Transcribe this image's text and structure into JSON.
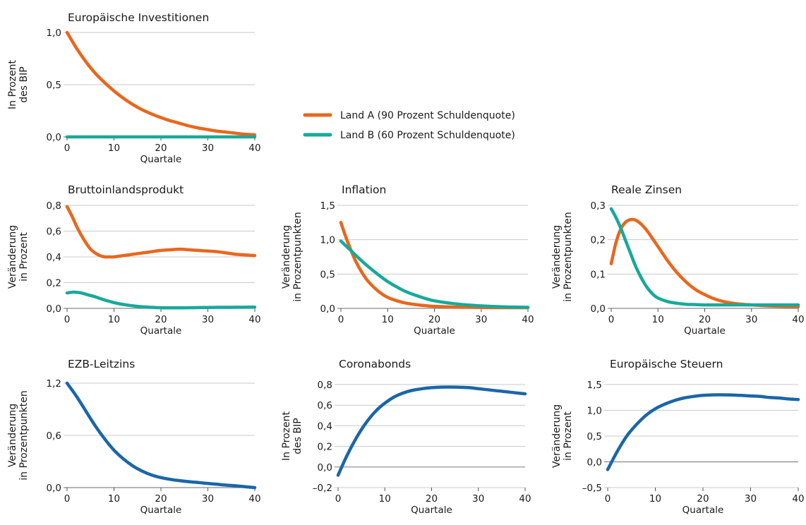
{
  "colors": {
    "land_a": "#E8671D",
    "land_b": "#18A99A",
    "euro": "#1A66A8",
    "grid": "#c8c8c8",
    "axis": "#555555"
  },
  "legend": {
    "land_a": "Land A (90 Prozent Schuldenquote)",
    "land_b": "Land B (60 Prozent Schuldenquote)"
  },
  "chart_data": [
    {
      "type": "line",
      "title": "Europäische Investitionen",
      "xlabel": "Quartale",
      "ylabel": [
        "In Prozent",
        "des BIP"
      ],
      "xlim": [
        0,
        40
      ],
      "ylim": [
        0,
        1.0
      ],
      "xticks": [
        0,
        10,
        20,
        30,
        40
      ],
      "xtick_labels": [
        "0",
        "10",
        "20",
        "30",
        "40"
      ],
      "yticks": [
        0,
        0.5,
        1.0
      ],
      "ytick_labels": [
        "0,0",
        "0,5",
        "1,0"
      ],
      "series": [
        {
          "name": "Land A (90 Prozent Schuldenquote)",
          "color": "#E8671D",
          "x": [
            0,
            2,
            4,
            6,
            8,
            10,
            12,
            14,
            16,
            18,
            20,
            22,
            24,
            26,
            28,
            30,
            32,
            34,
            36,
            38,
            40
          ],
          "y": [
            1.0,
            0.85,
            0.72,
            0.61,
            0.52,
            0.44,
            0.37,
            0.31,
            0.26,
            0.22,
            0.185,
            0.155,
            0.13,
            0.105,
            0.085,
            0.07,
            0.055,
            0.045,
            0.035,
            0.025,
            0.02
          ]
        },
        {
          "name": "Land B (60 Prozent Schuldenquote)",
          "color": "#18A99A",
          "x": [
            0,
            40
          ],
          "y": [
            0,
            0
          ]
        }
      ]
    },
    {
      "type": "line",
      "title": "Bruttoinlandsprodukt",
      "xlabel": "Quartale",
      "ylabel": [
        "Veränderung",
        "in Prozent"
      ],
      "xlim": [
        0,
        40
      ],
      "ylim": [
        0,
        0.8
      ],
      "xticks": [
        0,
        10,
        20,
        30,
        40
      ],
      "xtick_labels": [
        "0",
        "10",
        "20",
        "30",
        "40"
      ],
      "yticks": [
        0,
        0.2,
        0.4,
        0.6,
        0.8
      ],
      "ytick_labels": [
        "0,0",
        "0,2",
        "0,4",
        "0,6",
        "0,8"
      ],
      "series": [
        {
          "name": "Land A (90 Prozent Schuldenquote)",
          "color": "#E8671D",
          "x": [
            0,
            1,
            2,
            3,
            4,
            5,
            6,
            7,
            8,
            9,
            10,
            12,
            14,
            16,
            18,
            20,
            22,
            24,
            26,
            28,
            30,
            32,
            34,
            36,
            38,
            40
          ],
          "y": [
            0.79,
            0.72,
            0.64,
            0.57,
            0.51,
            0.46,
            0.43,
            0.41,
            0.4,
            0.4,
            0.4,
            0.41,
            0.42,
            0.43,
            0.44,
            0.45,
            0.455,
            0.46,
            0.455,
            0.45,
            0.445,
            0.44,
            0.43,
            0.42,
            0.415,
            0.41
          ]
        },
        {
          "name": "Land B (60 Prozent Schuldenquote)",
          "color": "#18A99A",
          "x": [
            0,
            1,
            2,
            3,
            4,
            5,
            6,
            8,
            10,
            12,
            14,
            16,
            18,
            20,
            22,
            24,
            26,
            28,
            30,
            32,
            34,
            36,
            38,
            40
          ],
          "y": [
            0.12,
            0.125,
            0.125,
            0.12,
            0.11,
            0.1,
            0.09,
            0.065,
            0.045,
            0.03,
            0.02,
            0.012,
            0.008,
            0.005,
            0.004,
            0.004,
            0.005,
            0.006,
            0.007,
            0.008,
            0.008,
            0.009,
            0.009,
            0.01
          ]
        }
      ]
    },
    {
      "type": "line",
      "title": "Inflation",
      "xlabel": "Quartale",
      "ylabel": [
        "Veränderung",
        "in Prozentpunkten"
      ],
      "xlim": [
        0,
        40
      ],
      "ylim": [
        0,
        1.5
      ],
      "xticks": [
        0,
        10,
        20,
        30,
        40
      ],
      "xtick_labels": [
        "0",
        "10",
        "20",
        "30",
        "40"
      ],
      "yticks": [
        0,
        0.5,
        1.0,
        1.5
      ],
      "ytick_labels": [
        "0,0",
        "0,5",
        "1,0",
        "1,5"
      ],
      "series": [
        {
          "name": "Land A (90 Prozent Schuldenquote)",
          "color": "#E8671D",
          "x": [
            0,
            1,
            2,
            3,
            4,
            5,
            6,
            8,
            10,
            12,
            14,
            16,
            18,
            20,
            24,
            28,
            32,
            36,
            40
          ],
          "y": [
            1.25,
            1.05,
            0.87,
            0.71,
            0.58,
            0.47,
            0.38,
            0.25,
            0.16,
            0.11,
            0.075,
            0.055,
            0.04,
            0.03,
            0.02,
            0.015,
            0.01,
            0.01,
            0.01
          ]
        },
        {
          "name": "Land B (60 Prozent Schuldenquote)",
          "color": "#18A99A",
          "x": [
            0,
            2,
            4,
            6,
            8,
            10,
            12,
            14,
            16,
            18,
            20,
            24,
            28,
            32,
            36,
            40
          ],
          "y": [
            0.98,
            0.85,
            0.72,
            0.6,
            0.49,
            0.39,
            0.31,
            0.24,
            0.19,
            0.145,
            0.11,
            0.07,
            0.045,
            0.03,
            0.02,
            0.015
          ]
        }
      ]
    },
    {
      "type": "line",
      "title": "Reale Zinsen",
      "xlabel": "Quartale",
      "ylabel": [
        "Veränderung",
        "in Prozentpunkten"
      ],
      "xlim": [
        0,
        40
      ],
      "ylim": [
        0,
        0.3
      ],
      "xticks": [
        0,
        10,
        20,
        30,
        40
      ],
      "xtick_labels": [
        "0",
        "10",
        "20",
        "30",
        "40"
      ],
      "yticks": [
        0,
        0.1,
        0.2,
        0.3
      ],
      "ytick_labels": [
        "0,0",
        "0,1",
        "0,2",
        "0,3"
      ],
      "series": [
        {
          "name": "Land A (90 Prozent Schuldenquote)",
          "color": "#E8671D",
          "x": [
            0,
            1,
            2,
            3,
            4,
            5,
            6,
            7,
            8,
            10,
            12,
            14,
            16,
            18,
            20,
            22,
            24,
            26,
            28,
            30,
            34,
            40
          ],
          "y": [
            0.13,
            0.19,
            0.23,
            0.25,
            0.258,
            0.258,
            0.25,
            0.237,
            0.22,
            0.18,
            0.14,
            0.105,
            0.077,
            0.055,
            0.04,
            0.028,
            0.02,
            0.015,
            0.012,
            0.01,
            0.007,
            0.005
          ]
        },
        {
          "name": "Land B (60 Prozent Schuldenquote)",
          "color": "#18A99A",
          "x": [
            0,
            1,
            2,
            3,
            4,
            5,
            6,
            7,
            8,
            9,
            10,
            12,
            14,
            16,
            18,
            20,
            25,
            30,
            35,
            40
          ],
          "y": [
            0.29,
            0.265,
            0.235,
            0.2,
            0.165,
            0.13,
            0.1,
            0.075,
            0.055,
            0.04,
            0.03,
            0.02,
            0.015,
            0.012,
            0.011,
            0.01,
            0.01,
            0.01,
            0.01,
            0.01
          ]
        }
      ]
    },
    {
      "type": "line",
      "title": "EZB-Leitzins",
      "xlabel": "Quartale",
      "ylabel": [
        "Veränderung",
        "in Prozentpunkten"
      ],
      "xlim": [
        0,
        40
      ],
      "ylim": [
        0,
        1.2
      ],
      "xticks": [
        0,
        10,
        20,
        30,
        40
      ],
      "xtick_labels": [
        "0",
        "10",
        "20",
        "30",
        "40"
      ],
      "yticks": [
        0,
        0.6,
        1.2
      ],
      "ytick_labels": [
        "0,0",
        "0,6",
        "1,2"
      ],
      "series": [
        {
          "name": "",
          "color": "#1A66A8",
          "x": [
            0,
            2,
            4,
            6,
            8,
            10,
            12,
            14,
            16,
            18,
            20,
            22,
            24,
            26,
            28,
            30,
            32,
            34,
            36,
            38,
            40
          ],
          "y": [
            1.2,
            1.05,
            0.88,
            0.71,
            0.56,
            0.43,
            0.33,
            0.25,
            0.19,
            0.145,
            0.115,
            0.095,
            0.08,
            0.068,
            0.058,
            0.048,
            0.038,
            0.028,
            0.02,
            0.01,
            0.0
          ]
        }
      ]
    },
    {
      "type": "line",
      "title": "Coronabonds",
      "xlabel": "Quartale",
      "ylabel": [
        "In Prozent",
        "des BIP"
      ],
      "xlim": [
        0,
        40
      ],
      "ylim": [
        -0.2,
        0.8
      ],
      "xticks": [
        0,
        10,
        20,
        30,
        40
      ],
      "xtick_labels": [
        "0",
        "10",
        "20",
        "30",
        "40"
      ],
      "yticks": [
        -0.2,
        0,
        0.2,
        0.4,
        0.6,
        0.8
      ],
      "ytick_labels": [
        "–0,2",
        "0,0",
        "0,2",
        "0,4",
        "0,6",
        "0,8"
      ],
      "series": [
        {
          "name": "",
          "color": "#1A66A8",
          "x": [
            0,
            2,
            4,
            6,
            8,
            10,
            12,
            14,
            16,
            18,
            20,
            22,
            25,
            28,
            30,
            32,
            34,
            36,
            38,
            40
          ],
          "y": [
            -0.08,
            0.12,
            0.29,
            0.43,
            0.54,
            0.62,
            0.68,
            0.72,
            0.745,
            0.76,
            0.77,
            0.775,
            0.775,
            0.77,
            0.76,
            0.75,
            0.74,
            0.73,
            0.72,
            0.71
          ]
        }
      ]
    },
    {
      "type": "line",
      "title": "Europäische Steuern",
      "xlabel": "Quartale",
      "ylabel": [
        "Veränderung",
        "in Prozent"
      ],
      "xlim": [
        0,
        40
      ],
      "ylim": [
        -0.5,
        1.5
      ],
      "xticks": [
        0,
        10,
        20,
        30,
        40
      ],
      "xtick_labels": [
        "0",
        "10",
        "20",
        "30",
        "40"
      ],
      "yticks": [
        -0.5,
        0,
        0.5,
        1.0,
        1.5
      ],
      "ytick_labels": [
        "–0,5",
        "0,0",
        "0,5",
        "1,0",
        "1,5"
      ],
      "series": [
        {
          "name": "",
          "color": "#1A66A8",
          "x": [
            0,
            2,
            4,
            6,
            8,
            10,
            12,
            14,
            16,
            18,
            20,
            22,
            25,
            28,
            30,
            32,
            34,
            36,
            38,
            40
          ],
          "y": [
            -0.15,
            0.2,
            0.5,
            0.72,
            0.9,
            1.03,
            1.12,
            1.19,
            1.24,
            1.27,
            1.29,
            1.3,
            1.3,
            1.29,
            1.28,
            1.27,
            1.25,
            1.24,
            1.22,
            1.21
          ]
        }
      ]
    }
  ]
}
